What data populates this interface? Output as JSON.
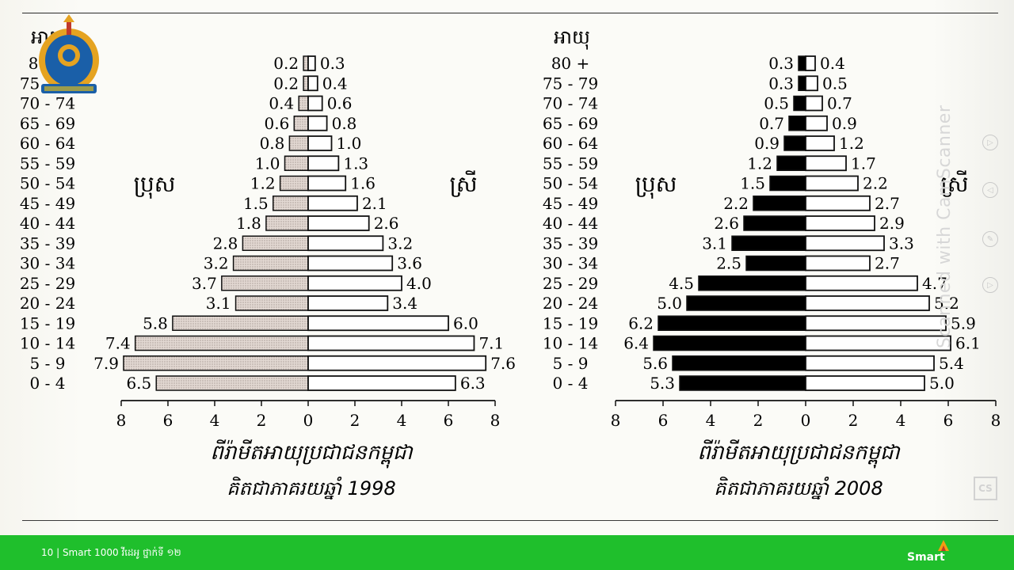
{
  "chart_data": [
    {
      "type": "bar",
      "subtype": "population-pyramid",
      "title": "ពីរ៉ាមីតអាយុប្រជាជនកម្ពុជា",
      "subtitle": "គិតជាភាគរយឆ្នាំ 1998",
      "age_axis_label": "អាយុ",
      "male_label": "ប្រុស",
      "female_label": "ស្រី",
      "categories": [
        "0 - 4",
        "5 - 9",
        "10 - 14",
        "15 - 19",
        "20 - 24",
        "25 - 29",
        "30 - 34",
        "35 - 39",
        "40 - 44",
        "45 - 49",
        "50 - 54",
        "55 - 59",
        "60 - 64",
        "65 - 69",
        "70 - 74",
        "75 - 79",
        "80 +"
      ],
      "series": [
        {
          "name": "ប្រុស",
          "values": [
            6.5,
            7.9,
            7.4,
            5.8,
            3.1,
            3.7,
            3.2,
            2.8,
            1.8,
            1.5,
            1.2,
            1.0,
            0.8,
            0.6,
            0.4,
            0.2,
            0.2
          ]
        },
        {
          "name": "ស្រី",
          "values": [
            6.3,
            7.6,
            7.1,
            6.0,
            3.4,
            4.0,
            3.6,
            3.2,
            2.6,
            2.1,
            1.6,
            1.3,
            1.0,
            0.8,
            0.6,
            0.4,
            0.3
          ]
        }
      ],
      "xticks": [
        "8",
        "6",
        "4",
        "2",
        "0",
        "2",
        "4",
        "6",
        "8"
      ],
      "xlim": [
        -8,
        8
      ],
      "colors": {
        "male": "#d7cbc4",
        "female": "#ffffff"
      }
    },
    {
      "type": "bar",
      "subtype": "population-pyramid",
      "title": "ពីរ៉ាមីតអាយុប្រជាជនកម្ពុជា",
      "subtitle": "គិតជាភាគរយឆ្នាំ 2008",
      "age_axis_label": "អាយុ",
      "male_label": "ប្រុស",
      "female_label": "ស្រី",
      "categories": [
        "0 - 4",
        "5 - 9",
        "10 - 14",
        "15 - 19",
        "20 - 24",
        "25 - 29",
        "30 - 34",
        "35 - 39",
        "40 - 44",
        "45 - 49",
        "50 - 54",
        "55 - 59",
        "60 - 64",
        "65 - 69",
        "70 - 74",
        "75 - 79",
        "80 +"
      ],
      "series": [
        {
          "name": "ប្រុស",
          "values": [
            5.3,
            5.6,
            6.4,
            6.2,
            5.0,
            4.5,
            2.5,
            3.1,
            2.6,
            2.2,
            1.5,
            1.2,
            0.9,
            0.7,
            0.5,
            0.3,
            0.3
          ]
        },
        {
          "name": "ស្រី",
          "values": [
            5.0,
            5.4,
            6.1,
            5.9,
            5.2,
            4.7,
            2.7,
            3.3,
            2.9,
            2.7,
            2.2,
            1.7,
            1.2,
            0.9,
            0.7,
            0.5,
            0.4
          ]
        }
      ],
      "xticks": [
        "8",
        "6",
        "4",
        "2",
        "0",
        "2",
        "4",
        "6",
        "8"
      ],
      "xlim": [
        -8,
        8
      ],
      "colors": {
        "male": "#000000",
        "female": "#ffffff"
      }
    }
  ],
  "footer": {
    "page_info": "10 | Smart 1000 វីដេអូ ថ្នាក់ទី ១២",
    "brand": "Smart"
  },
  "overlay": {
    "watermark": "Scanned with CamScanner",
    "badge": "CS"
  },
  "icons": [
    "ministry-logo-icon",
    "smart-brand-icon",
    "play-icon",
    "back-icon",
    "draw-icon"
  ],
  "colors": {
    "footer_bg": "#1fbf2c",
    "logo_blue": "#1a5fa8",
    "logo_gold": "#e5a321"
  }
}
